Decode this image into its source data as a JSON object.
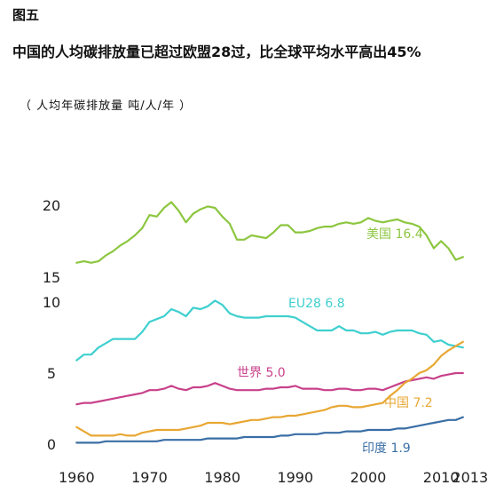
{
  "figure_label": "图五",
  "chart_data": {
    "type": "line",
    "title": "中国的人均碳排放量已超过欧盟28过，比全球平均水平高出45%",
    "ylabel": "（ 人均年碳排放量  吨/人/年 ）",
    "xlabel": "",
    "x": [
      1960,
      1961,
      1962,
      1963,
      1964,
      1965,
      1966,
      1967,
      1968,
      1969,
      1970,
      1971,
      1972,
      1973,
      1974,
      1975,
      1976,
      1977,
      1978,
      1979,
      1980,
      1981,
      1982,
      1983,
      1984,
      1985,
      1986,
      1987,
      1988,
      1989,
      1990,
      1991,
      1992,
      1993,
      1994,
      1995,
      1996,
      1997,
      1998,
      1999,
      2000,
      2001,
      2002,
      2003,
      2004,
      2005,
      2006,
      2007,
      2008,
      2009,
      2010,
      2011,
      2012,
      2013
    ],
    "x_ticks": [
      "1960",
      "1970",
      "1980",
      "1990",
      "2000",
      "2010",
      "2013"
    ],
    "x_tick_values": [
      1960,
      1970,
      1980,
      1990,
      2000,
      2010,
      2013
    ],
    "y_ticks": [
      "0",
      "5",
      "10",
      "15",
      "20"
    ],
    "y_tick_values": [
      0,
      5,
      10,
      15,
      20
    ],
    "xlim": [
      1958.5,
      2014
    ],
    "ylim": [
      0,
      22
    ],
    "y_break": [
      10.5,
      15
    ],
    "grid": false,
    "series": [
      {
        "name": "美国",
        "label_value": "16.4",
        "color": "#8cc63f",
        "values": [
          16.0,
          16.1,
          16.0,
          16.1,
          16.5,
          16.8,
          17.2,
          17.5,
          17.9,
          18.4,
          19.3,
          19.2,
          19.8,
          20.2,
          19.6,
          18.8,
          19.4,
          19.7,
          19.9,
          19.8,
          19.2,
          18.7,
          17.6,
          17.6,
          17.9,
          17.8,
          17.7,
          18.1,
          18.6,
          18.6,
          18.1,
          18.1,
          18.2,
          18.4,
          18.5,
          18.5,
          18.7,
          18.8,
          18.7,
          18.8,
          19.1,
          18.9,
          18.8,
          18.9,
          19.0,
          18.8,
          18.7,
          18.5,
          17.9,
          17.0,
          17.5,
          17.0,
          16.2,
          16.4
        ]
      },
      {
        "name": "EU28",
        "label_value": "6.8",
        "color": "#3fcfcf",
        "values": [
          5.9,
          6.3,
          6.3,
          6.8,
          7.1,
          7.4,
          7.4,
          7.4,
          7.4,
          7.9,
          8.6,
          8.8,
          9.0,
          9.5,
          9.3,
          9.0,
          9.6,
          9.5,
          9.7,
          10.1,
          9.8,
          9.2,
          9.0,
          8.9,
          8.9,
          8.9,
          9.0,
          9.0,
          9.0,
          9.0,
          8.9,
          8.6,
          8.3,
          8.0,
          8.0,
          8.0,
          8.3,
          8.0,
          8.0,
          7.8,
          7.8,
          7.9,
          7.7,
          7.9,
          8.0,
          8.0,
          8.0,
          7.8,
          7.7,
          7.2,
          7.3,
          7.0,
          6.9,
          6.8
        ]
      },
      {
        "name": "世界",
        "label_value": "5.0",
        "color": "#c8418a",
        "values": [
          2.8,
          2.9,
          2.9,
          3.0,
          3.1,
          3.2,
          3.3,
          3.4,
          3.5,
          3.6,
          3.8,
          3.8,
          3.9,
          4.1,
          3.9,
          3.8,
          4.0,
          4.0,
          4.1,
          4.3,
          4.1,
          3.9,
          3.8,
          3.8,
          3.8,
          3.8,
          3.9,
          3.9,
          4.0,
          4.0,
          4.1,
          3.9,
          3.9,
          3.9,
          3.8,
          3.8,
          3.9,
          3.9,
          3.8,
          3.8,
          3.9,
          3.9,
          3.8,
          4.0,
          4.2,
          4.4,
          4.5,
          4.6,
          4.7,
          4.6,
          4.8,
          4.9,
          5.0,
          5.0
        ]
      },
      {
        "name": "中国",
        "label_value": "7.2",
        "color": "#e8a733",
        "values": [
          1.2,
          0.9,
          0.6,
          0.6,
          0.6,
          0.6,
          0.7,
          0.6,
          0.6,
          0.8,
          0.9,
          1.0,
          1.0,
          1.0,
          1.0,
          1.1,
          1.2,
          1.3,
          1.5,
          1.5,
          1.5,
          1.4,
          1.5,
          1.6,
          1.7,
          1.7,
          1.8,
          1.9,
          1.9,
          2.0,
          2.0,
          2.1,
          2.2,
          2.3,
          2.4,
          2.6,
          2.7,
          2.7,
          2.6,
          2.6,
          2.7,
          2.8,
          2.9,
          3.4,
          3.8,
          4.3,
          4.6,
          5.0,
          5.2,
          5.6,
          6.2,
          6.6,
          6.9,
          7.2
        ]
      },
      {
        "name": "印度",
        "label_value": "1.9",
        "color": "#3a6ea5",
        "values": [
          0.1,
          0.1,
          0.1,
          0.1,
          0.2,
          0.2,
          0.2,
          0.2,
          0.2,
          0.2,
          0.2,
          0.2,
          0.3,
          0.3,
          0.3,
          0.3,
          0.3,
          0.3,
          0.4,
          0.4,
          0.4,
          0.4,
          0.4,
          0.5,
          0.5,
          0.5,
          0.5,
          0.5,
          0.6,
          0.6,
          0.7,
          0.7,
          0.7,
          0.7,
          0.8,
          0.8,
          0.8,
          0.9,
          0.9,
          0.9,
          1.0,
          1.0,
          1.0,
          1.0,
          1.1,
          1.1,
          1.2,
          1.3,
          1.4,
          1.5,
          1.6,
          1.7,
          1.7,
          1.9
        ]
      }
    ]
  }
}
